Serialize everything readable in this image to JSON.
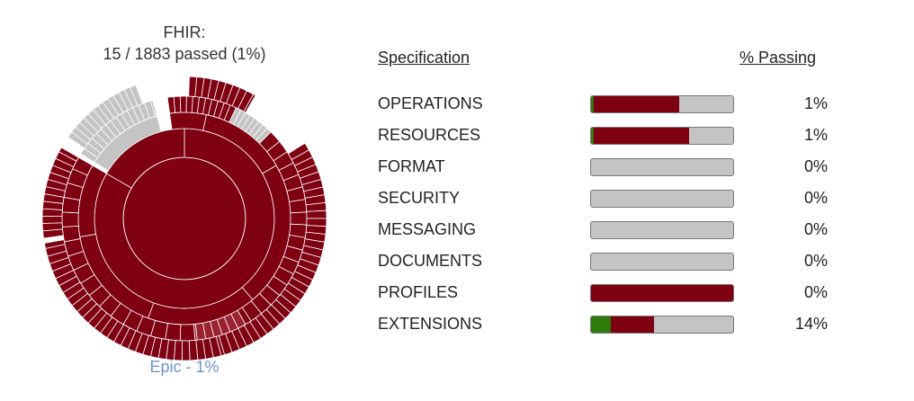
{
  "summary": {
    "title_line1": "FHIR:",
    "title_line2": "15 / 1883 passed (1%)",
    "link_label": "Epic - 1%"
  },
  "colors": {
    "passed": "#2e7d0b",
    "failed": "#7f0011",
    "untested": "#c4c4c4"
  },
  "table": {
    "col_spec": "Specification",
    "col_pass": "% Passing",
    "rows": [
      {
        "name": "OPERATIONS",
        "pct": "1%",
        "passed": 0.02,
        "failed": 0.6
      },
      {
        "name": "RESOURCES",
        "pct": "1%",
        "passed": 0.02,
        "failed": 0.67
      },
      {
        "name": "FORMAT",
        "pct": "0%",
        "passed": 0.0,
        "failed": 0.0
      },
      {
        "name": "SECURITY",
        "pct": "0%",
        "passed": 0.0,
        "failed": 0.0
      },
      {
        "name": "MESSAGING",
        "pct": "0%",
        "passed": 0.0,
        "failed": 0.0
      },
      {
        "name": "DOCUMENTS",
        "pct": "0%",
        "passed": 0.0,
        "failed": 0.0
      },
      {
        "name": "PROFILES",
        "pct": "0%",
        "passed": 0.0,
        "failed": 1.0
      },
      {
        "name": "EXTENSIONS",
        "pct": "14%",
        "passed": 0.14,
        "failed": 0.3
      }
    ]
  }
}
